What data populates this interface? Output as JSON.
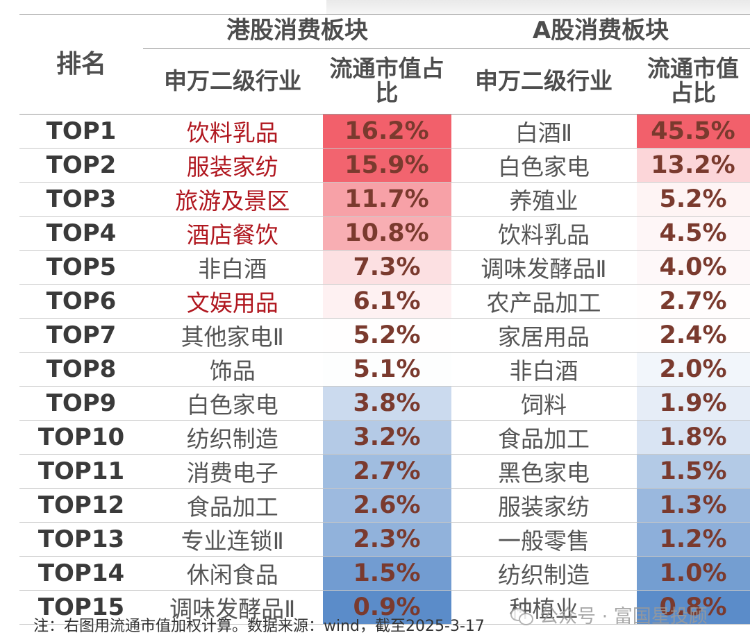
{
  "table": {
    "rank_header": "排名",
    "hk_group": "港股消费板块",
    "a_group": "A股消费板块",
    "industry_header": "申万二级行业",
    "ratio_header": "流通市值占比",
    "rows": [
      {
        "rank": "TOP1",
        "hk_industry": "饮料乳品",
        "hk_ratio": "16.2%",
        "a_industry": "白酒Ⅱ",
        "a_ratio": "45.5%"
      },
      {
        "rank": "TOP2",
        "hk_industry": "服装家纺",
        "hk_ratio": "15.9%",
        "a_industry": "白色家电",
        "a_ratio": "13.2%"
      },
      {
        "rank": "TOP3",
        "hk_industry": "旅游及景区",
        "hk_ratio": "11.7%",
        "a_industry": "养殖业",
        "a_ratio": "5.2%"
      },
      {
        "rank": "TOP4",
        "hk_industry": "酒店餐饮",
        "hk_ratio": "10.8%",
        "a_industry": "饮料乳品",
        "a_ratio": "4.5%"
      },
      {
        "rank": "TOP5",
        "hk_industry": "非白酒",
        "hk_ratio": "7.3%",
        "a_industry": "调味发酵品Ⅱ",
        "a_ratio": "4.0%"
      },
      {
        "rank": "TOP6",
        "hk_industry": "文娱用品",
        "hk_ratio": "6.1%",
        "a_industry": "农产品加工",
        "a_ratio": "2.7%"
      },
      {
        "rank": "TOP7",
        "hk_industry": "其他家电Ⅱ",
        "hk_ratio": "5.2%",
        "a_industry": "家居用品",
        "a_ratio": "2.4%"
      },
      {
        "rank": "TOP8",
        "hk_industry": "饰品",
        "hk_ratio": "5.1%",
        "a_industry": "非白酒",
        "a_ratio": "2.0%"
      },
      {
        "rank": "TOP9",
        "hk_industry": "白色家电",
        "hk_ratio": "3.8%",
        "a_industry": "饲料",
        "a_ratio": "1.9%"
      },
      {
        "rank": "TOP10",
        "hk_industry": "纺织制造",
        "hk_ratio": "3.2%",
        "a_industry": "食品加工",
        "a_ratio": "1.8%"
      },
      {
        "rank": "TOP11",
        "hk_industry": "消费电子",
        "hk_ratio": "2.7%",
        "a_industry": "黑色家电",
        "a_ratio": "1.5%"
      },
      {
        "rank": "TOP12",
        "hk_industry": "食品加工",
        "hk_ratio": "2.6%",
        "a_industry": "服装家纺",
        "a_ratio": "1.3%"
      },
      {
        "rank": "TOP13",
        "hk_industry": "专业连锁Ⅱ",
        "hk_ratio": "2.3%",
        "a_industry": "一般零售",
        "a_ratio": "1.2%"
      },
      {
        "rank": "TOP14",
        "hk_industry": "休闲食品",
        "hk_ratio": "1.5%",
        "a_industry": "纺织制造",
        "a_ratio": "1.0%"
      },
      {
        "rank": "TOP15",
        "hk_industry": "调味发酵品Ⅱ",
        "hk_ratio": "0.9%",
        "a_industry": "种植业",
        "a_ratio": "0.8%"
      }
    ],
    "highlight_hk_industries": [
      "TOP1",
      "TOP2",
      "TOP3",
      "TOP4",
      "TOP6"
    ],
    "colors": {
      "highlight_text": "#b0171f",
      "value_text": "#7a3a2e",
      "heat_high": "#f2606b",
      "heat_mid": "#ffffff",
      "heat_low": "#5b8cc9"
    }
  },
  "footer": {
    "note": "注：右图用流通市值加权计算。数据来源：wind，截至2025-3-17",
    "watermark_icon": "wechat-icon",
    "watermark": "公众号 · 富国星投顾"
  }
}
